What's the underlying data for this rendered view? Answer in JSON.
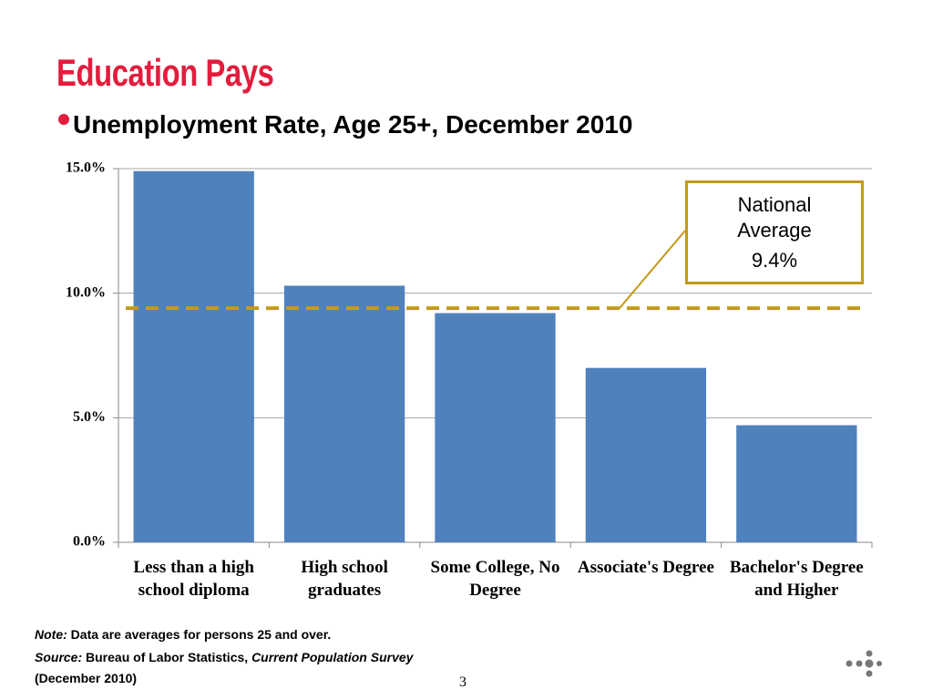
{
  "slide": {
    "title": "Education Pays",
    "subtitle": "Unemployment Rate, Age 25+, December 2010",
    "note": {
      "label": "Note:",
      "text": "Data are averages for persons 25 and over."
    },
    "source": {
      "label": "Source:",
      "text": "Bureau of Labor Statistics,",
      "publication": "Current Population Survey",
      "date": "(December 2010)"
    },
    "page_number": "3"
  },
  "chart_data": {
    "type": "bar",
    "categories": [
      "Less than a high school diploma",
      "High school graduates",
      "Some College, No Degree",
      "Associate's Degree",
      "Bachelor's Degree and Higher"
    ],
    "values": [
      14.9,
      10.3,
      9.2,
      7.0,
      4.7
    ],
    "color": "#4f81bd",
    "ylim": [
      0,
      15
    ],
    "yticks": [
      {
        "value": 0,
        "label": "0.0%"
      },
      {
        "value": 5,
        "label": "5.0%"
      },
      {
        "value": 10,
        "label": "10.0%"
      },
      {
        "value": 15,
        "label": "15.0%"
      }
    ],
    "grid": true,
    "reference_line": {
      "name": "National Average",
      "value": 9.4,
      "label": "9.4%",
      "color": "#c49a1c"
    }
  }
}
